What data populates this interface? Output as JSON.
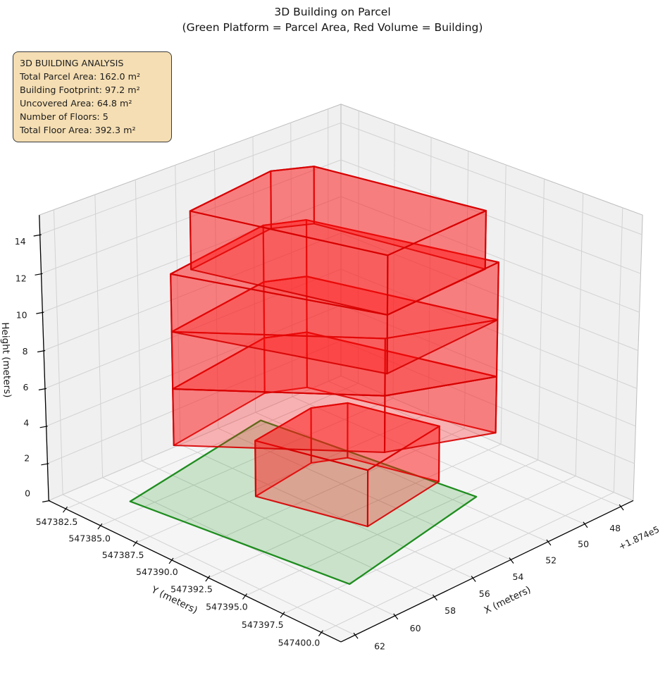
{
  "title": {
    "line1": "3D Building on Parcel",
    "line2": "(Green Platform = Parcel Area, Red Volume = Building)"
  },
  "analysis_box": {
    "title": "3D BUILDING ANALYSIS",
    "lines": [
      "Total Parcel Area: 162.0 m²",
      "Building Footprint: 97.2 m²",
      "Uncovered Area: 64.8 m²",
      "Number of Floors: 5",
      "Total Floor Area: 392.3 m²"
    ]
  },
  "chart_data": {
    "type": "3d-building-extrusion",
    "title": "3D Building on Parcel",
    "subtitle": "(Green Platform = Parcel Area, Red Volume = Building)",
    "xlabel": "X (meters)",
    "ylabel": "Y (meters)",
    "zlabel": "Height (meters)",
    "x_offset_text": "+1.874e5",
    "xlim": [
      187447.3,
      187462.7
    ],
    "ylim": [
      547381.25,
      547401.25
    ],
    "zlim": [
      0,
      15
    ],
    "xticks": [
      {
        "v": 187448,
        "label": "48"
      },
      {
        "v": 187450,
        "label": "50"
      },
      {
        "v": 187452,
        "label": "52"
      },
      {
        "v": 187454,
        "label": "54"
      },
      {
        "v": 187456,
        "label": "56"
      },
      {
        "v": 187458,
        "label": "58"
      },
      {
        "v": 187460,
        "label": "60"
      },
      {
        "v": 187462,
        "label": "62"
      }
    ],
    "yticks": [
      {
        "v": 547382.5,
        "label": "547382.5"
      },
      {
        "v": 547385.0,
        "label": "547385.0"
      },
      {
        "v": 547387.5,
        "label": "547387.5"
      },
      {
        "v": 547390.0,
        "label": "547390.0"
      },
      {
        "v": 547392.5,
        "label": "547392.5"
      },
      {
        "v": 547395.0,
        "label": "547395.0"
      },
      {
        "v": 547397.5,
        "label": "547397.5"
      },
      {
        "v": 547400.0,
        "label": "547400.0"
      }
    ],
    "zticks": [
      {
        "v": 0,
        "label": "0"
      },
      {
        "v": 2,
        "label": "2"
      },
      {
        "v": 4,
        "label": "4"
      },
      {
        "v": 6,
        "label": "6"
      },
      {
        "v": 8,
        "label": "8"
      },
      {
        "v": 10,
        "label": "10"
      },
      {
        "v": 12,
        "label": "12"
      },
      {
        "v": 14,
        "label": "14"
      }
    ],
    "parcel": {
      "area_m2": 162.0,
      "polygon": [
        [
          187460.6,
          547384.1
        ],
        [
          187452.35,
          547382.1
        ],
        [
          187451.2,
          547395.6
        ],
        [
          187459.45,
          547397.6
        ]
      ]
    },
    "building": {
      "footprint_m2": 97.2,
      "uncovered_m2": 64.8,
      "num_floors": 5,
      "total_floor_area_m2": 392.3,
      "floors": [
        {
          "name": "floor-1",
          "z0": 0,
          "z1": 3,
          "footprint": [
            [
              187457.0,
              547388.0
            ],
            [
              187453.57,
              547387.32
            ],
            [
              187452.28,
              547388.18
            ],
            [
              187451.28,
              547393.18
            ],
            [
              187455.79,
              547394.08
            ]
          ]
        },
        {
          "name": "floor-2",
          "z0": 3,
          "z1": 6,
          "footprint": [
            [
              187459.4,
              547385.6
            ],
            [
              187453.9,
              547384.5
            ],
            [
              187452.4,
              547385.5
            ],
            [
              187450.2,
              547395.6
            ],
            [
              187454.3,
              547393.3
            ]
          ]
        },
        {
          "name": "floor-3",
          "z0": 6,
          "z1": 9,
          "footprint": [
            [
              187459.4,
              547385.6
            ],
            [
              187453.9,
              547384.5
            ],
            [
              187452.4,
              547385.5
            ],
            [
              187450.2,
              547395.6
            ],
            [
              187454.3,
              547393.3
            ]
          ]
        },
        {
          "name": "floor-4",
          "z0": 9,
          "z1": 12,
          "footprint": [
            [
              187459.4,
              547385.6
            ],
            [
              187453.9,
              547384.5
            ],
            [
              187452.4,
              547385.5
            ],
            [
              187450.2,
              547395.6
            ],
            [
              187456.4,
              547396.1
            ]
          ]
        },
        {
          "name": "floor-5",
          "z0": 12,
          "z1": 15,
          "footprint": [
            [
              187458.6,
              547385.9
            ],
            [
              187453.9,
              547385.05
            ],
            [
              187452.45,
              547386.1
            ],
            [
              187451.0,
              547395.7
            ],
            [
              187456.4,
              547396.1
            ]
          ]
        }
      ]
    },
    "view": {
      "elev": 25,
      "azim": 45,
      "dist": 10
    },
    "legend_position": "none",
    "grid": true,
    "colors": {
      "building_fill": "#ff1414",
      "building_fill_alpha": 0.3,
      "building_edge": "#d60000",
      "parcel_fill": "#1e961e",
      "parcel_fill_alpha": 0.2,
      "parcel_edge": "#148814",
      "pane_wall": "#f0f0f1",
      "pane_floor": "#f5f5f6",
      "grid_line": "#d2d2d2",
      "axis_line": "#000000",
      "text": "#1a1a1a",
      "annotation_bg": "#f5deb3",
      "annotation_border": "#3a3a3a"
    }
  }
}
